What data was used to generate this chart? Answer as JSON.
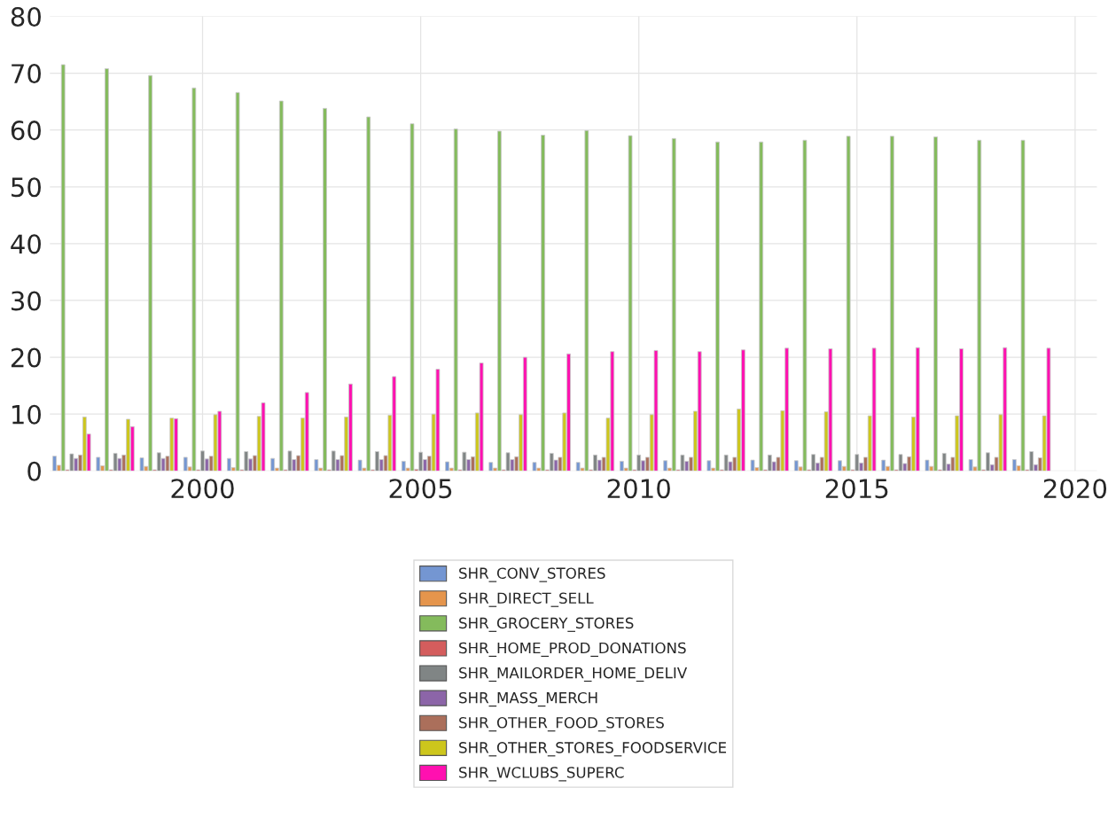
{
  "chart_data": {
    "type": "bar",
    "x": [
      1997,
      1998,
      1999,
      2000,
      2001,
      2002,
      2003,
      2004,
      2005,
      2006,
      2007,
      2008,
      2009,
      2010,
      2011,
      2012,
      2013,
      2014,
      2015,
      2016,
      2017,
      2018,
      2019
    ],
    "series": [
      {
        "name": "SHR_CONV_STORES",
        "color": "#7496d2",
        "values": [
          2.6,
          2.4,
          2.3,
          2.4,
          2.2,
          2.2,
          2.0,
          1.9,
          1.7,
          1.6,
          1.5,
          1.5,
          1.5,
          1.7,
          1.8,
          1.8,
          1.9,
          1.8,
          1.8,
          1.9,
          1.9,
          2.0,
          2.0
        ]
      },
      {
        "name": "SHR_DIRECT_SELL",
        "color": "#e5954c",
        "values": [
          1.0,
          0.9,
          0.8,
          0.7,
          0.6,
          0.5,
          0.5,
          0.5,
          0.5,
          0.5,
          0.5,
          0.5,
          0.5,
          0.5,
          0.5,
          0.5,
          0.6,
          0.7,
          0.8,
          0.8,
          0.8,
          0.7,
          0.9
        ]
      },
      {
        "name": "SHR_GROCERY_STORES",
        "color": "#84bb5c",
        "values": [
          71.5,
          70.8,
          69.6,
          67.4,
          66.6,
          65.1,
          63.8,
          62.3,
          61.1,
          60.2,
          59.8,
          59.1,
          59.9,
          59.0,
          58.5,
          57.9,
          57.9,
          58.2,
          58.9,
          58.9,
          58.8,
          58.2,
          58.2
        ]
      },
      {
        "name": "SHR_HOME_PROD_DONATIONS",
        "color": "#d45d5d",
        "values": [
          0.2,
          0.2,
          0.2,
          0.2,
          0.2,
          0.2,
          0.2,
          0.2,
          0.3,
          0.2,
          0.2,
          0.2,
          0.2,
          0.2,
          0.2,
          0.2,
          0.2,
          0.2,
          0.2,
          0.2,
          0.2,
          0.2,
          0.2
        ]
      },
      {
        "name": "SHR_MAILORDER_HOME_DELIV",
        "color": "#808585",
        "values": [
          3.0,
          3.1,
          3.2,
          3.5,
          3.4,
          3.5,
          3.5,
          3.4,
          3.3,
          3.3,
          3.2,
          3.1,
          2.8,
          2.8,
          2.8,
          2.8,
          2.8,
          2.9,
          2.9,
          2.9,
          3.1,
          3.2,
          3.4
        ]
      },
      {
        "name": "SHR_MASS_MERCH",
        "color": "#8c65a8",
        "values": [
          2.2,
          2.2,
          2.2,
          2.1,
          2.1,
          2.0,
          2.0,
          2.0,
          2.0,
          2.0,
          2.0,
          1.9,
          1.9,
          1.8,
          1.7,
          1.6,
          1.6,
          1.4,
          1.4,
          1.3,
          1.2,
          1.1,
          1.1
        ]
      },
      {
        "name": "SHR_OTHER_FOOD_STORES",
        "color": "#ab6f5b",
        "values": [
          2.8,
          2.8,
          2.6,
          2.6,
          2.7,
          2.7,
          2.7,
          2.7,
          2.6,
          2.5,
          2.5,
          2.4,
          2.4,
          2.4,
          2.4,
          2.4,
          2.4,
          2.4,
          2.4,
          2.5,
          2.4,
          2.4,
          2.3
        ]
      },
      {
        "name": "SHR_OTHER_STORES_FOODSERVICE",
        "color": "#cdc61c",
        "values": [
          9.5,
          9.1,
          9.3,
          9.9,
          9.6,
          9.3,
          9.5,
          9.8,
          10.0,
          10.2,
          9.9,
          10.2,
          9.3,
          9.9,
          10.5,
          10.9,
          10.6,
          10.4,
          9.7,
          9.5,
          9.7,
          9.9,
          9.7
        ]
      },
      {
        "name": "SHR_WCLUBS_SUPERC",
        "color": "#ff10b0",
        "values": [
          6.5,
          7.8,
          9.2,
          10.5,
          12.0,
          13.8,
          15.3,
          16.6,
          17.9,
          19.0,
          20.0,
          20.6,
          21.0,
          21.2,
          21.0,
          21.3,
          21.6,
          21.5,
          21.6,
          21.7,
          21.5,
          21.7,
          21.6
        ]
      }
    ],
    "xlim": [
      1996.5,
      2020.5
    ],
    "xticks": [
      2000,
      2005,
      2010,
      2015,
      2020
    ],
    "ylim": [
      0,
      80
    ],
    "yticks": [
      0,
      10,
      20,
      30,
      40,
      50,
      60,
      70,
      80
    ],
    "grid": true,
    "legend": "bottom"
  }
}
